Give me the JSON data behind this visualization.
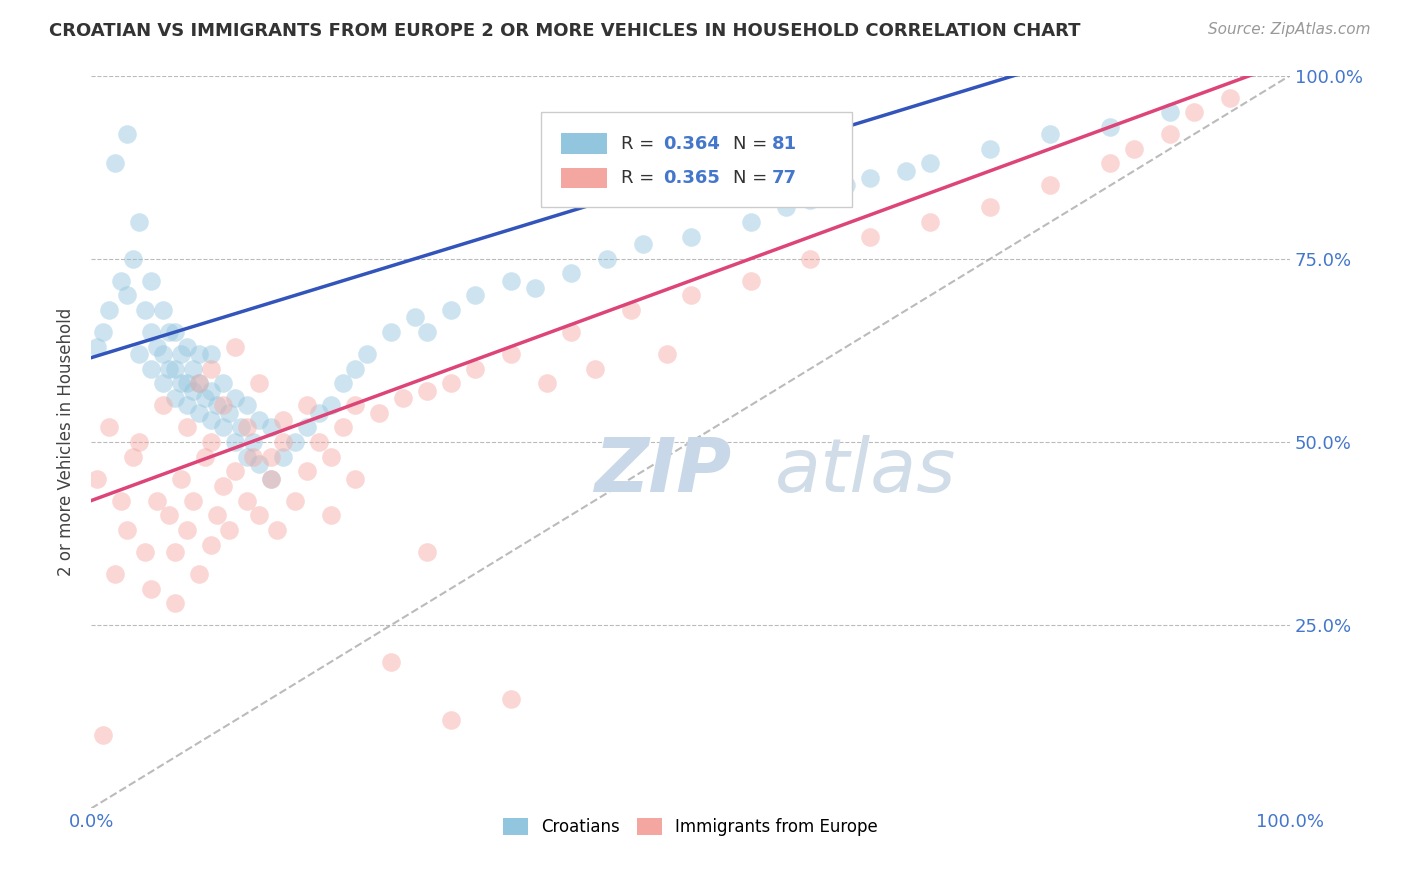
{
  "title": "CROATIAN VS IMMIGRANTS FROM EUROPE 2 OR MORE VEHICLES IN HOUSEHOLD CORRELATION CHART",
  "source": "Source: ZipAtlas.com",
  "ylabel": "2 or more Vehicles in Household",
  "xlim": [
    0.0,
    1.0
  ],
  "ylim": [
    0.0,
    1.0
  ],
  "ytick_vals": [
    0.0,
    0.25,
    0.5,
    0.75,
    1.0
  ],
  "ytick_labels_right": [
    "",
    "25.0%",
    "50.0%",
    "75.0%",
    "100.0%"
  ],
  "xtick_vals": [
    0.0,
    1.0
  ],
  "xtick_labels": [
    "0.0%",
    "100.0%"
  ],
  "blue_color": "#92c5de",
  "pink_color": "#f4a6a0",
  "line_blue": "#3355bb",
  "line_pink": "#dd4477",
  "line_dashed_color": "#aaaaaa",
  "watermark_zip": "ZIP",
  "watermark_atlas": "atlas",
  "legend_r1": "0.364",
  "legend_n1": "81",
  "legend_r2": "0.365",
  "legend_n2": "77",
  "blue_x": [
    0.005,
    0.01,
    0.015,
    0.02,
    0.025,
    0.03,
    0.03,
    0.035,
    0.04,
    0.04,
    0.045,
    0.05,
    0.05,
    0.05,
    0.055,
    0.06,
    0.06,
    0.06,
    0.065,
    0.065,
    0.07,
    0.07,
    0.07,
    0.075,
    0.075,
    0.08,
    0.08,
    0.08,
    0.085,
    0.085,
    0.09,
    0.09,
    0.09,
    0.095,
    0.1,
    0.1,
    0.1,
    0.105,
    0.11,
    0.11,
    0.115,
    0.12,
    0.12,
    0.125,
    0.13,
    0.13,
    0.135,
    0.14,
    0.14,
    0.15,
    0.15,
    0.16,
    0.17,
    0.18,
    0.19,
    0.2,
    0.21,
    0.22,
    0.23,
    0.25,
    0.27,
    0.28,
    0.3,
    0.32,
    0.35,
    0.37,
    0.4,
    0.43,
    0.46,
    0.5,
    0.55,
    0.58,
    0.6,
    0.63,
    0.65,
    0.68,
    0.7,
    0.75,
    0.8,
    0.85,
    0.9
  ],
  "blue_y": [
    0.63,
    0.65,
    0.68,
    0.88,
    0.72,
    0.92,
    0.7,
    0.75,
    0.62,
    0.8,
    0.68,
    0.6,
    0.65,
    0.72,
    0.63,
    0.58,
    0.62,
    0.68,
    0.6,
    0.65,
    0.56,
    0.6,
    0.65,
    0.58,
    0.62,
    0.55,
    0.58,
    0.63,
    0.57,
    0.6,
    0.54,
    0.58,
    0.62,
    0.56,
    0.53,
    0.57,
    0.62,
    0.55,
    0.52,
    0.58,
    0.54,
    0.5,
    0.56,
    0.52,
    0.48,
    0.55,
    0.5,
    0.47,
    0.53,
    0.45,
    0.52,
    0.48,
    0.5,
    0.52,
    0.54,
    0.55,
    0.58,
    0.6,
    0.62,
    0.65,
    0.67,
    0.65,
    0.68,
    0.7,
    0.72,
    0.71,
    0.73,
    0.75,
    0.77,
    0.78,
    0.8,
    0.82,
    0.83,
    0.85,
    0.86,
    0.87,
    0.88,
    0.9,
    0.92,
    0.93,
    0.95
  ],
  "pink_x": [
    0.005,
    0.01,
    0.015,
    0.02,
    0.025,
    0.03,
    0.035,
    0.04,
    0.045,
    0.05,
    0.055,
    0.06,
    0.065,
    0.07,
    0.075,
    0.08,
    0.085,
    0.09,
    0.095,
    0.1,
    0.1,
    0.105,
    0.11,
    0.115,
    0.12,
    0.13,
    0.135,
    0.14,
    0.15,
    0.155,
    0.16,
    0.17,
    0.18,
    0.19,
    0.2,
    0.21,
    0.22,
    0.24,
    0.26,
    0.28,
    0.3,
    0.32,
    0.35,
    0.38,
    0.4,
    0.42,
    0.45,
    0.48,
    0.5,
    0.55,
    0.6,
    0.65,
    0.7,
    0.75,
    0.8,
    0.85,
    0.87,
    0.9,
    0.92,
    0.95,
    0.07,
    0.08,
    0.09,
    0.1,
    0.11,
    0.12,
    0.13,
    0.14,
    0.15,
    0.16,
    0.18,
    0.2,
    0.22,
    0.25,
    0.28,
    0.3,
    0.35
  ],
  "pink_y": [
    0.45,
    0.1,
    0.52,
    0.32,
    0.42,
    0.38,
    0.48,
    0.5,
    0.35,
    0.3,
    0.42,
    0.55,
    0.4,
    0.35,
    0.45,
    0.38,
    0.42,
    0.32,
    0.48,
    0.36,
    0.5,
    0.4,
    0.44,
    0.38,
    0.46,
    0.42,
    0.48,
    0.4,
    0.45,
    0.38,
    0.5,
    0.42,
    0.46,
    0.5,
    0.48,
    0.52,
    0.55,
    0.54,
    0.56,
    0.57,
    0.58,
    0.6,
    0.62,
    0.58,
    0.65,
    0.6,
    0.68,
    0.62,
    0.7,
    0.72,
    0.75,
    0.78,
    0.8,
    0.82,
    0.85,
    0.88,
    0.9,
    0.92,
    0.95,
    0.97,
    0.28,
    0.52,
    0.58,
    0.6,
    0.55,
    0.63,
    0.52,
    0.58,
    0.48,
    0.53,
    0.55,
    0.4,
    0.45,
    0.2,
    0.35,
    0.12,
    0.15
  ]
}
